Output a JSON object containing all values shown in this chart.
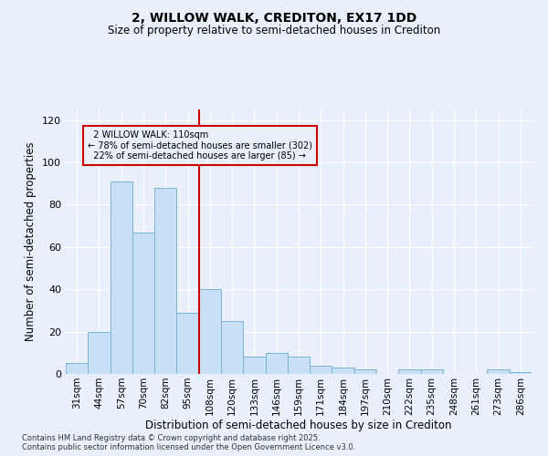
{
  "title": "2, WILLOW WALK, CREDITON, EX17 1DD",
  "subtitle": "Size of property relative to semi-detached houses in Crediton",
  "xlabel": "Distribution of semi-detached houses by size in Crediton",
  "ylabel": "Number of semi-detached properties",
  "categories": [
    "31sqm",
    "44sqm",
    "57sqm",
    "70sqm",
    "82sqm",
    "95sqm",
    "108sqm",
    "120sqm",
    "133sqm",
    "146sqm",
    "159sqm",
    "171sqm",
    "184sqm",
    "197sqm",
    "210sqm",
    "222sqm",
    "235sqm",
    "248sqm",
    "261sqm",
    "273sqm",
    "286sqm"
  ],
  "values": [
    5,
    20,
    91,
    67,
    88,
    29,
    40,
    25,
    8,
    10,
    8,
    4,
    3,
    2,
    0,
    2,
    2,
    0,
    0,
    2,
    1
  ],
  "bar_color": "#c9dff5",
  "bar_edge_color": "#7ab4d8",
  "property_line_bin": 6,
  "property_label": "2 WILLOW WALK: 110sqm",
  "smaller_pct": 78,
  "smaller_count": 302,
  "larger_pct": 22,
  "larger_count": 85,
  "line_color": "#cc0000",
  "ylim": [
    0,
    125
  ],
  "yticks": [
    0,
    20,
    40,
    60,
    80,
    100,
    120
  ],
  "bg_color": "#eaf0fb",
  "grid_color": "#ffffff",
  "footer": "Contains HM Land Registry data © Crown copyright and database right 2025.\nContains public sector information licensed under the Open Government Licence v3.0."
}
